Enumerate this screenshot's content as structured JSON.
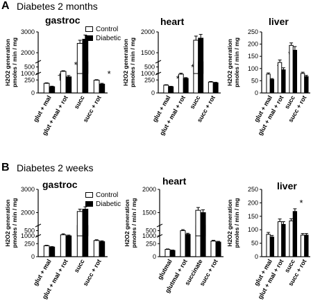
{
  "figure": {
    "panel_a_label": "A",
    "panel_a_title": "Diabetes 2 months",
    "panel_b_label": "B",
    "panel_b_title": "Diabetes 2 weeks",
    "legend": {
      "control": "Control",
      "diabetic": "Diabetic"
    },
    "colors": {
      "control": "#ffffff",
      "diabetic": "#000000",
      "axis": "#000000"
    }
  },
  "chart_data": [
    {
      "type": "bar",
      "panel": "A",
      "title": "gastroc",
      "ylabel": [
        "H2O2 generation",
        "pmoles / min / mg"
      ],
      "categories": [
        "glut + mal",
        "glut + mal + rot",
        "succ",
        "succ + rot"
      ],
      "series": [
        {
          "name": "Control",
          "values": [
            185,
            415,
            2450,
            245
          ],
          "errors": [
            10,
            12,
            150,
            10
          ]
        },
        {
          "name": "Diabetic",
          "values": [
            120,
            310,
            2650,
            170
          ],
          "errors": [
            10,
            25,
            200,
            15
          ]
        }
      ],
      "annotations": [
        {
          "category": "glut + mal",
          "symbol": "†"
        },
        {
          "category": "glut + mal + rot",
          "symbol": "*"
        },
        {
          "category": "succ + rot",
          "symbol": "*"
        }
      ],
      "ylim_lower": [
        0,
        600
      ],
      "ylim_upper": [
        1000,
        3000
      ],
      "yticks_lower": [
        0,
        250,
        500
      ],
      "yticks_upper": [
        1000,
        2000,
        3000
      ],
      "grid": false,
      "axis_break": true
    },
    {
      "type": "bar",
      "panel": "A",
      "title": "heart",
      "ylabel": [
        "H2O2 generation",
        "pmoles / min / mg"
      ],
      "categories": [
        "glut + mal",
        "glut + mal + rot",
        "succ",
        "succ + rot"
      ],
      "series": [
        {
          "name": "Control",
          "values": [
            150,
            360,
            1800,
            210
          ],
          "errors": [
            8,
            20,
            100,
            10
          ]
        },
        {
          "name": "Diabetic",
          "values": [
            120,
            280,
            1850,
            195
          ],
          "errors": [
            8,
            15,
            90,
            10
          ]
        }
      ],
      "annotations": [
        {
          "category": "glut + mal",
          "symbol": "*"
        },
        {
          "category": "glut + mal + rot",
          "symbol": "*"
        }
      ],
      "ylim_lower": [
        0,
        600
      ],
      "ylim_upper": [
        1000,
        2000
      ],
      "yticks_lower": [
        0,
        250,
        500
      ],
      "yticks_upper": [
        1000,
        1500,
        2000
      ],
      "grid": false,
      "axis_break": true
    },
    {
      "type": "bar",
      "panel": "A",
      "title": "liver",
      "ylabel": [
        "H2O2 generation",
        "pmoles / min / mg"
      ],
      "categories": [
        "glut + mal",
        "glut + mal + rot",
        "succ",
        "succ + rot"
      ],
      "series": [
        {
          "name": "Control",
          "values": [
            77,
            125,
            195,
            80
          ],
          "errors": [
            5,
            10,
            10,
            5
          ]
        },
        {
          "name": "Diabetic",
          "values": [
            55,
            95,
            175,
            67
          ],
          "errors": [
            4,
            8,
            15,
            5
          ]
        }
      ],
      "annotations": [
        {
          "category": "glut + mal",
          "symbol": "†"
        },
        {
          "category": "glut + mal + rot",
          "symbol": "*"
        }
      ],
      "ylim": [
        0,
        250
      ],
      "yticks": [
        0,
        50,
        100,
        150,
        200,
        250
      ],
      "grid": false,
      "axis_break": false
    },
    {
      "type": "bar",
      "panel": "B",
      "title": "gastroc",
      "ylabel": [
        "H2O2 generation",
        "pmoles / min / mg"
      ],
      "categories": [
        "glut + mal",
        "glut + mal + rot",
        "succ",
        "succ + rot"
      ],
      "series": [
        {
          "name": "Control",
          "values": [
            210,
            420,
            2050,
            310
          ],
          "errors": [
            10,
            20,
            100,
            15
          ]
        },
        {
          "name": "Diabetic",
          "values": [
            185,
            400,
            2150,
            290
          ],
          "errors": [
            10,
            15,
            100,
            15
          ]
        }
      ],
      "annotations": [],
      "ylim_lower": [
        0,
        600
      ],
      "ylim_upper": [
        1000,
        3000
      ],
      "yticks_lower": [
        0,
        250,
        500
      ],
      "yticks_upper": [
        1000,
        2000,
        3000
      ],
      "grid": false,
      "axis_break": true
    },
    {
      "type": "bar",
      "panel": "B",
      "title": "heart",
      "ylabel": [
        "H2O2 generation",
        "pmoles / min / mg"
      ],
      "categories": [
        "glutmal",
        "glutmal + rot",
        "succinate",
        "succ + rot"
      ],
      "series": [
        {
          "name": "Control",
          "values": [
            140,
            500,
            1550,
            300
          ],
          "errors": [
            8,
            20,
            60,
            15
          ]
        },
        {
          "name": "Diabetic",
          "values": [
            120,
            430,
            1500,
            280
          ],
          "errors": [
            8,
            20,
            60,
            15
          ]
        }
      ],
      "annotations": [],
      "ylim_lower": [
        0,
        600
      ],
      "ylim_upper": [
        1000,
        2000
      ],
      "yticks_lower": [
        0,
        250,
        500
      ],
      "yticks_upper": [
        1000,
        1500,
        2000
      ],
      "grid": false,
      "axis_break": true
    },
    {
      "type": "bar",
      "panel": "B",
      "title": "liver",
      "ylabel": [
        "H2O2 generation",
        "pmoles / min / mg"
      ],
      "categories": [
        "glut + mal",
        "glut + mal + rot",
        "succ",
        "succ + rot"
      ],
      "series": [
        {
          "name": "Control",
          "values": [
            83,
            130,
            133,
            80
          ],
          "errors": [
            7,
            10,
            8,
            6
          ]
        },
        {
          "name": "Diabetic",
          "values": [
            73,
            120,
            168,
            80
          ],
          "errors": [
            6,
            10,
            10,
            6
          ]
        }
      ],
      "annotations": [
        {
          "category": "succ",
          "symbol": "*"
        }
      ],
      "ylim": [
        0,
        250
      ],
      "yticks": [
        0,
        50,
        100,
        150,
        200,
        250
      ],
      "grid": false,
      "axis_break": false
    }
  ]
}
